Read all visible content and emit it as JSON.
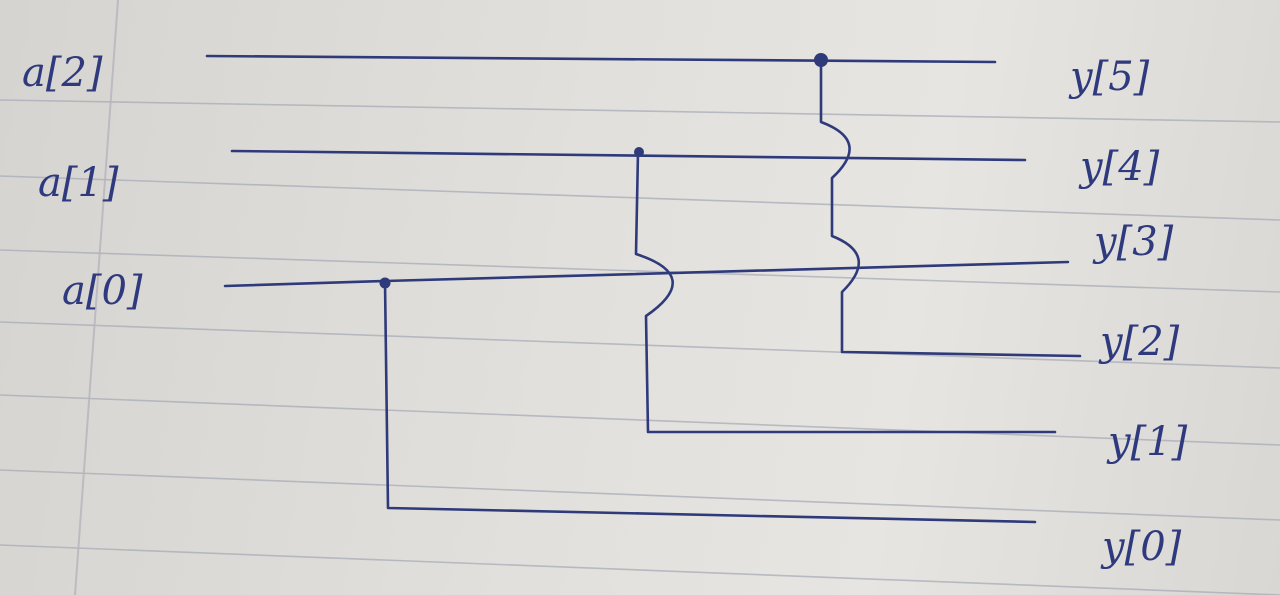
{
  "inputs": {
    "a2": "a[2]",
    "a1": "a[1]",
    "a0": "a[0]"
  },
  "outputs": {
    "y5": "y[5]",
    "y4": "y[4]",
    "y3": "y[3]",
    "y2": "y[2]",
    "y1": "y[1]",
    "y0": "y[0]"
  },
  "colors": {
    "ink": "#2e3a7a",
    "paper": "#e2e0dc",
    "rule": "#a9acb8"
  }
}
